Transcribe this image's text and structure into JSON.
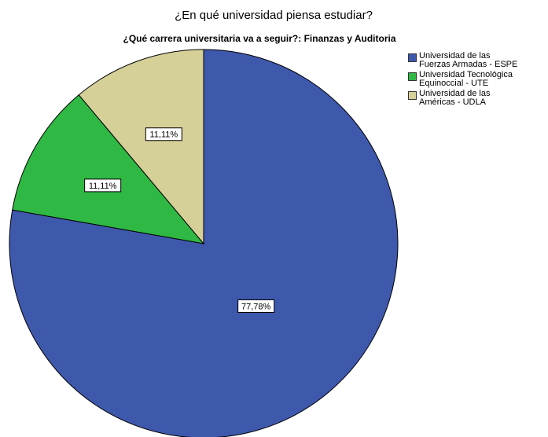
{
  "chart_data": {
    "type": "pie",
    "title": "¿En qué universidad piensa estudiar?",
    "subtitle": "¿Qué carrera universitaria va a seguir?: Finanzas y Auditoria",
    "categories": [
      "Universidad de las Fuerzas Armadas - ESPE",
      "Universidad Tecnológica Equinoccial - UTE",
      "Universidad de las Américas - UDLA"
    ],
    "values": [
      77.78,
      11.11,
      11.11
    ],
    "value_labels": [
      "77,78%",
      "11,11%",
      "11,11%"
    ],
    "colors": [
      "#3e58ac",
      "#2fb844",
      "#d5cf98"
    ],
    "legend": "right"
  }
}
